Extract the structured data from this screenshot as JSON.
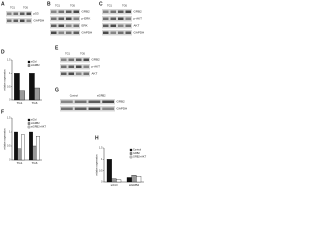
{
  "panels": [
    "A",
    "B",
    "C",
    "D",
    "E",
    "F",
    "G",
    "H"
  ],
  "blots": [
    {
      "lanes": [
        "TG1",
        "TG6"
      ],
      "labels": [
        "p53",
        "GAPDH"
      ]
    },
    {
      "lanes": [
        "TG1",
        "TG6"
      ],
      "labels": [
        "GRB2",
        "p-ERK",
        "ERK",
        "GAPDH"
      ]
    },
    {
      "lanes": [
        "TG1",
        "TG6"
      ],
      "labels": [
        "GRB2",
        "p-AKT",
        "AKT",
        "GAPDH"
      ]
    },
    {
      "lanes": [
        "TG1",
        "TG6"
      ],
      "labels": [
        "GRB2",
        "p-AKT",
        "AKT"
      ]
    },
    {
      "lanes": [
        "Control",
        "siGRB2"
      ],
      "labels": [
        "GRB2",
        "GAPDH"
      ]
    }
  ],
  "chart_data": [
    {
      "type": "bar",
      "ylabel": "relative expression",
      "categories": [
        "TG1",
        "TG6"
      ],
      "series": [
        {
          "name": "siCtrl",
          "color": "#111111",
          "values": [
            1.0,
            1.0
          ]
        },
        {
          "name": "siGRB2",
          "color": "#999999",
          "values": [
            0.35,
            0.45
          ]
        }
      ],
      "ylim": [
        0,
        1.5
      ],
      "yticks": [
        0,
        0.5,
        1,
        1.5
      ]
    },
    {
      "type": "bar",
      "ylabel": "relative expression",
      "categories": [
        "TG1",
        "TG6"
      ],
      "series": [
        {
          "name": "siCtrl",
          "color": "#111111",
          "values": [
            1.0,
            1.0
          ]
        },
        {
          "name": "siGRB2",
          "color": "#999999",
          "values": [
            0.4,
            0.5
          ]
        },
        {
          "name": "siGRB2+AKT",
          "color": "#ffffff",
          "values": [
            0.9,
            0.85
          ]
        }
      ],
      "ylim": [
        0,
        1.5
      ],
      "yticks": [
        0,
        0.5,
        1,
        1.5
      ]
    },
    {
      "type": "bar",
      "ylabel": "relative expression",
      "categories": [
        "siCtrl",
        "siGRB2"
      ],
      "series": [
        {
          "name": "Control",
          "color": "#111111",
          "values": [
            1.0,
            0.2
          ]
        },
        {
          "name": "GRB2",
          "color": "#999999",
          "values": [
            0.15,
            0.3
          ]
        },
        {
          "name": "GRB2+AKT",
          "color": "#ffffff",
          "values": [
            0.1,
            0.25
          ]
        }
      ],
      "ylim": [
        0,
        1.5
      ],
      "yticks": [
        0,
        0.5,
        1,
        1.5
      ]
    }
  ]
}
